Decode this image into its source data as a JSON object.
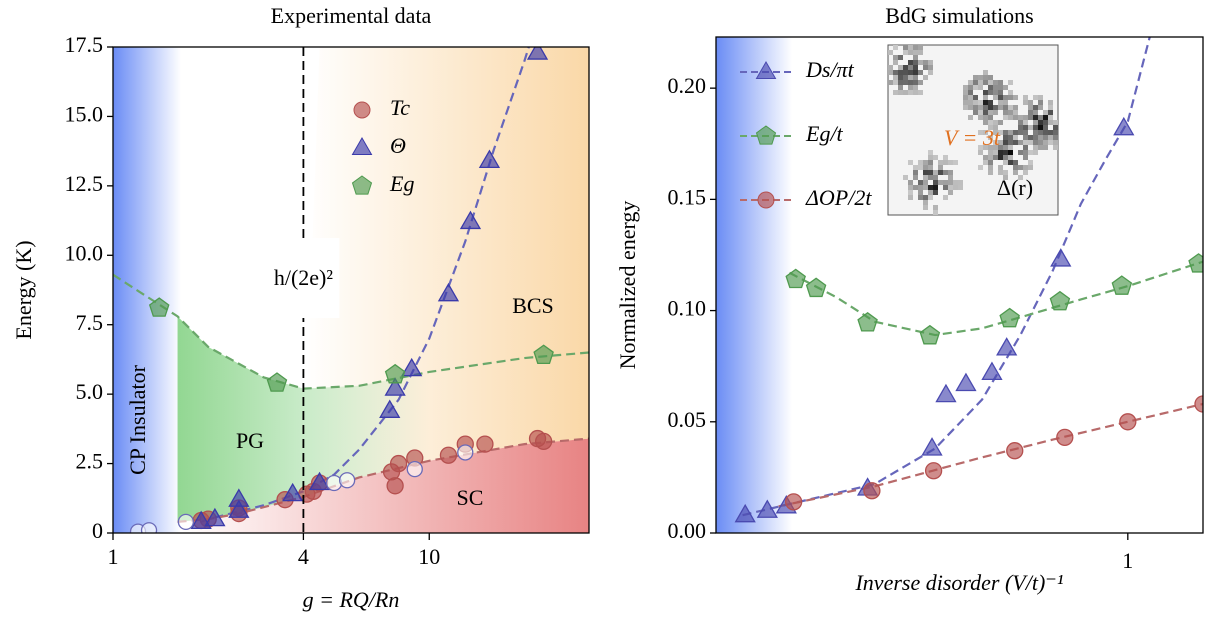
{
  "chart_data": [
    {
      "type": "scatter",
      "title": "Experimental data",
      "x_label": "g = RQ/Rn",
      "y_label": "Energy (K)",
      "xlog": true,
      "xlim": [
        1,
        32
      ],
      "ylim": [
        0,
        17.5
      ],
      "xticks": [
        1,
        4,
        10
      ],
      "yticks": [
        0,
        2.5,
        {
          "value": 5,
          "label": "5.0"
        },
        7.5,
        {
          "value": 10,
          "label": "10.0"
        },
        12.5,
        {
          "value": 15,
          "label": "15.0"
        },
        17.5
      ],
      "legend": "upper-center",
      "vline": 4,
      "vline_label": "h/(2e)²",
      "annotations": [
        "CP Insulator",
        "PG",
        "BCS",
        "SC"
      ],
      "series": [
        {
          "name": "Tc",
          "color": "#b5504f",
          "marker": "circle",
          "x": [
            1.9,
            2.0,
            2.5,
            2.5,
            3.5,
            4.1,
            4.3,
            4.5,
            7.6,
            7.8,
            8.0,
            9.0,
            11.5,
            13,
            15,
            22,
            23
          ],
          "values": [
            0.45,
            0.5,
            0.7,
            0.9,
            1.2,
            1.4,
            1.5,
            1.8,
            2.2,
            1.7,
            2.5,
            2.7,
            2.8,
            3.2,
            3.2,
            3.4,
            3.3
          ]
        },
        {
          "name": "Θ",
          "color": "#3a3aaa",
          "marker": "triangle",
          "x": [
            1.9,
            2.1,
            2.5,
            2.5,
            3.7,
            4.5,
            7.5,
            7.8,
            8.8,
            11.5,
            13.5,
            15.5,
            22
          ],
          "values": [
            0.4,
            0.5,
            0.8,
            1.2,
            1.4,
            1.8,
            4.4,
            5.2,
            5.9,
            8.6,
            11.2,
            13.4,
            17.3
          ]
        },
        {
          "name": "Eg",
          "color": "#4f9a4f",
          "marker": "pentagon",
          "x": [
            1.4,
            3.3,
            7.8,
            23
          ],
          "values": [
            8.1,
            5.4,
            5.7,
            6.4
          ]
        },
        {
          "color": "#6a6ab8",
          "marker": "circle",
          "open": true,
          "x": [
            1.2,
            1.3,
            1.7,
            5.0,
            5.5,
            9.0,
            13
          ],
          "values": [
            0.05,
            0.1,
            0.4,
            1.8,
            1.9,
            2.3,
            2.9
          ]
        }
      ],
      "fits": [
        {
          "color": "#6666bb",
          "x": [
            1.9,
            2,
            3,
            4,
            5,
            6,
            8,
            10,
            13,
            16,
            20,
            22
          ],
          "values": [
            0.4,
            0.5,
            1.0,
            1.5,
            2.1,
            3.0,
            4.8,
            7.0,
            10.5,
            13.8,
            17.0,
            18.5
          ]
        },
        {
          "color": "#6aa86a",
          "x": [
            1,
            1.6,
            2,
            3,
            4,
            6,
            10,
            20,
            32
          ],
          "values": [
            9.3,
            7.8,
            6.7,
            5.6,
            5.2,
            5.3,
            5.8,
            6.3,
            6.5
          ]
        },
        {
          "color": "#b86a6a",
          "x": [
            1.6,
            2,
            2.5,
            4,
            6,
            10,
            20,
            32
          ],
          "values": [
            0.4,
            0.5,
            0.7,
            1.3,
            2.0,
            2.6,
            3.2,
            3.4
          ]
        }
      ]
    },
    {
      "type": "scatter",
      "title": "BdG simulations",
      "x_label": "Inverse disorder (V/t)⁻¹",
      "y_label": "Normalized energy",
      "xlog": true,
      "xlim": [
        0.141,
        1.43
      ],
      "ylim": [
        0,
        0.223
      ],
      "xticks": [
        1
      ],
      "yticks": [
        {
          "value": 0,
          "label": "0.00"
        },
        0.05,
        {
          "value": 0.1,
          "label": "0.10"
        },
        0.15,
        {
          "value": 0.2,
          "label": "0.20"
        }
      ],
      "legend": "upper-left",
      "annotations": [
        "V = 3t",
        "Δ(r)"
      ],
      "series": [
        {
          "name": "Ds/πt",
          "color": "#4a4ab0",
          "marker": "triangle",
          "x": [
            0.162,
            0.18,
            0.197,
            0.29,
            0.394,
            0.421,
            0.463,
            0.524,
            0.562,
            0.727,
            0.981
          ],
          "values": [
            0.008,
            0.01,
            0.012,
            0.02,
            0.038,
            0.062,
            0.067,
            0.072,
            0.083,
            0.123,
            0.182
          ]
        },
        {
          "name": "Eg/t",
          "color": "#4f9a4f",
          "marker": "pentagon",
          "x": [
            0.206,
            0.227,
            0.29,
            0.39,
            0.57,
            0.724,
            0.972,
            1.4
          ],
          "values": [
            0.114,
            0.11,
            0.0945,
            0.0887,
            0.0964,
            0.104,
            0.111,
            0.121
          ]
        },
        {
          "name": "ΔOP/2t",
          "color": "#b5504f",
          "marker": "circle",
          "x": [
            0.204,
            0.296,
            0.397,
            0.584,
            0.741,
            1.0,
            1.43
          ],
          "values": [
            0.014,
            0.019,
            0.028,
            0.037,
            0.043,
            0.05,
            0.058
          ]
        }
      ],
      "fits": [
        {
          "color": "#6666bb",
          "x": [
            0.16,
            0.2,
            0.3,
            0.4,
            0.5,
            0.6,
            0.7,
            0.8,
            0.9,
            1.0,
            1.11
          ],
          "values": [
            0.008,
            0.013,
            0.022,
            0.038,
            0.06,
            0.089,
            0.118,
            0.148,
            0.168,
            0.185,
            0.223
          ]
        },
        {
          "color": "#6aa86a",
          "x": [
            0.2,
            0.25,
            0.3,
            0.4,
            0.5,
            0.6,
            0.8,
            1.0,
            1.43
          ],
          "values": [
            0.117,
            0.106,
            0.095,
            0.089,
            0.092,
            0.097,
            0.105,
            0.111,
            0.122
          ]
        },
        {
          "color": "#b86a6a",
          "x": [
            0.19,
            0.3,
            0.5,
            0.7,
            1.0,
            1.43
          ],
          "values": [
            0.012,
            0.021,
            0.034,
            0.042,
            0.05,
            0.058
          ]
        }
      ]
    }
  ]
}
